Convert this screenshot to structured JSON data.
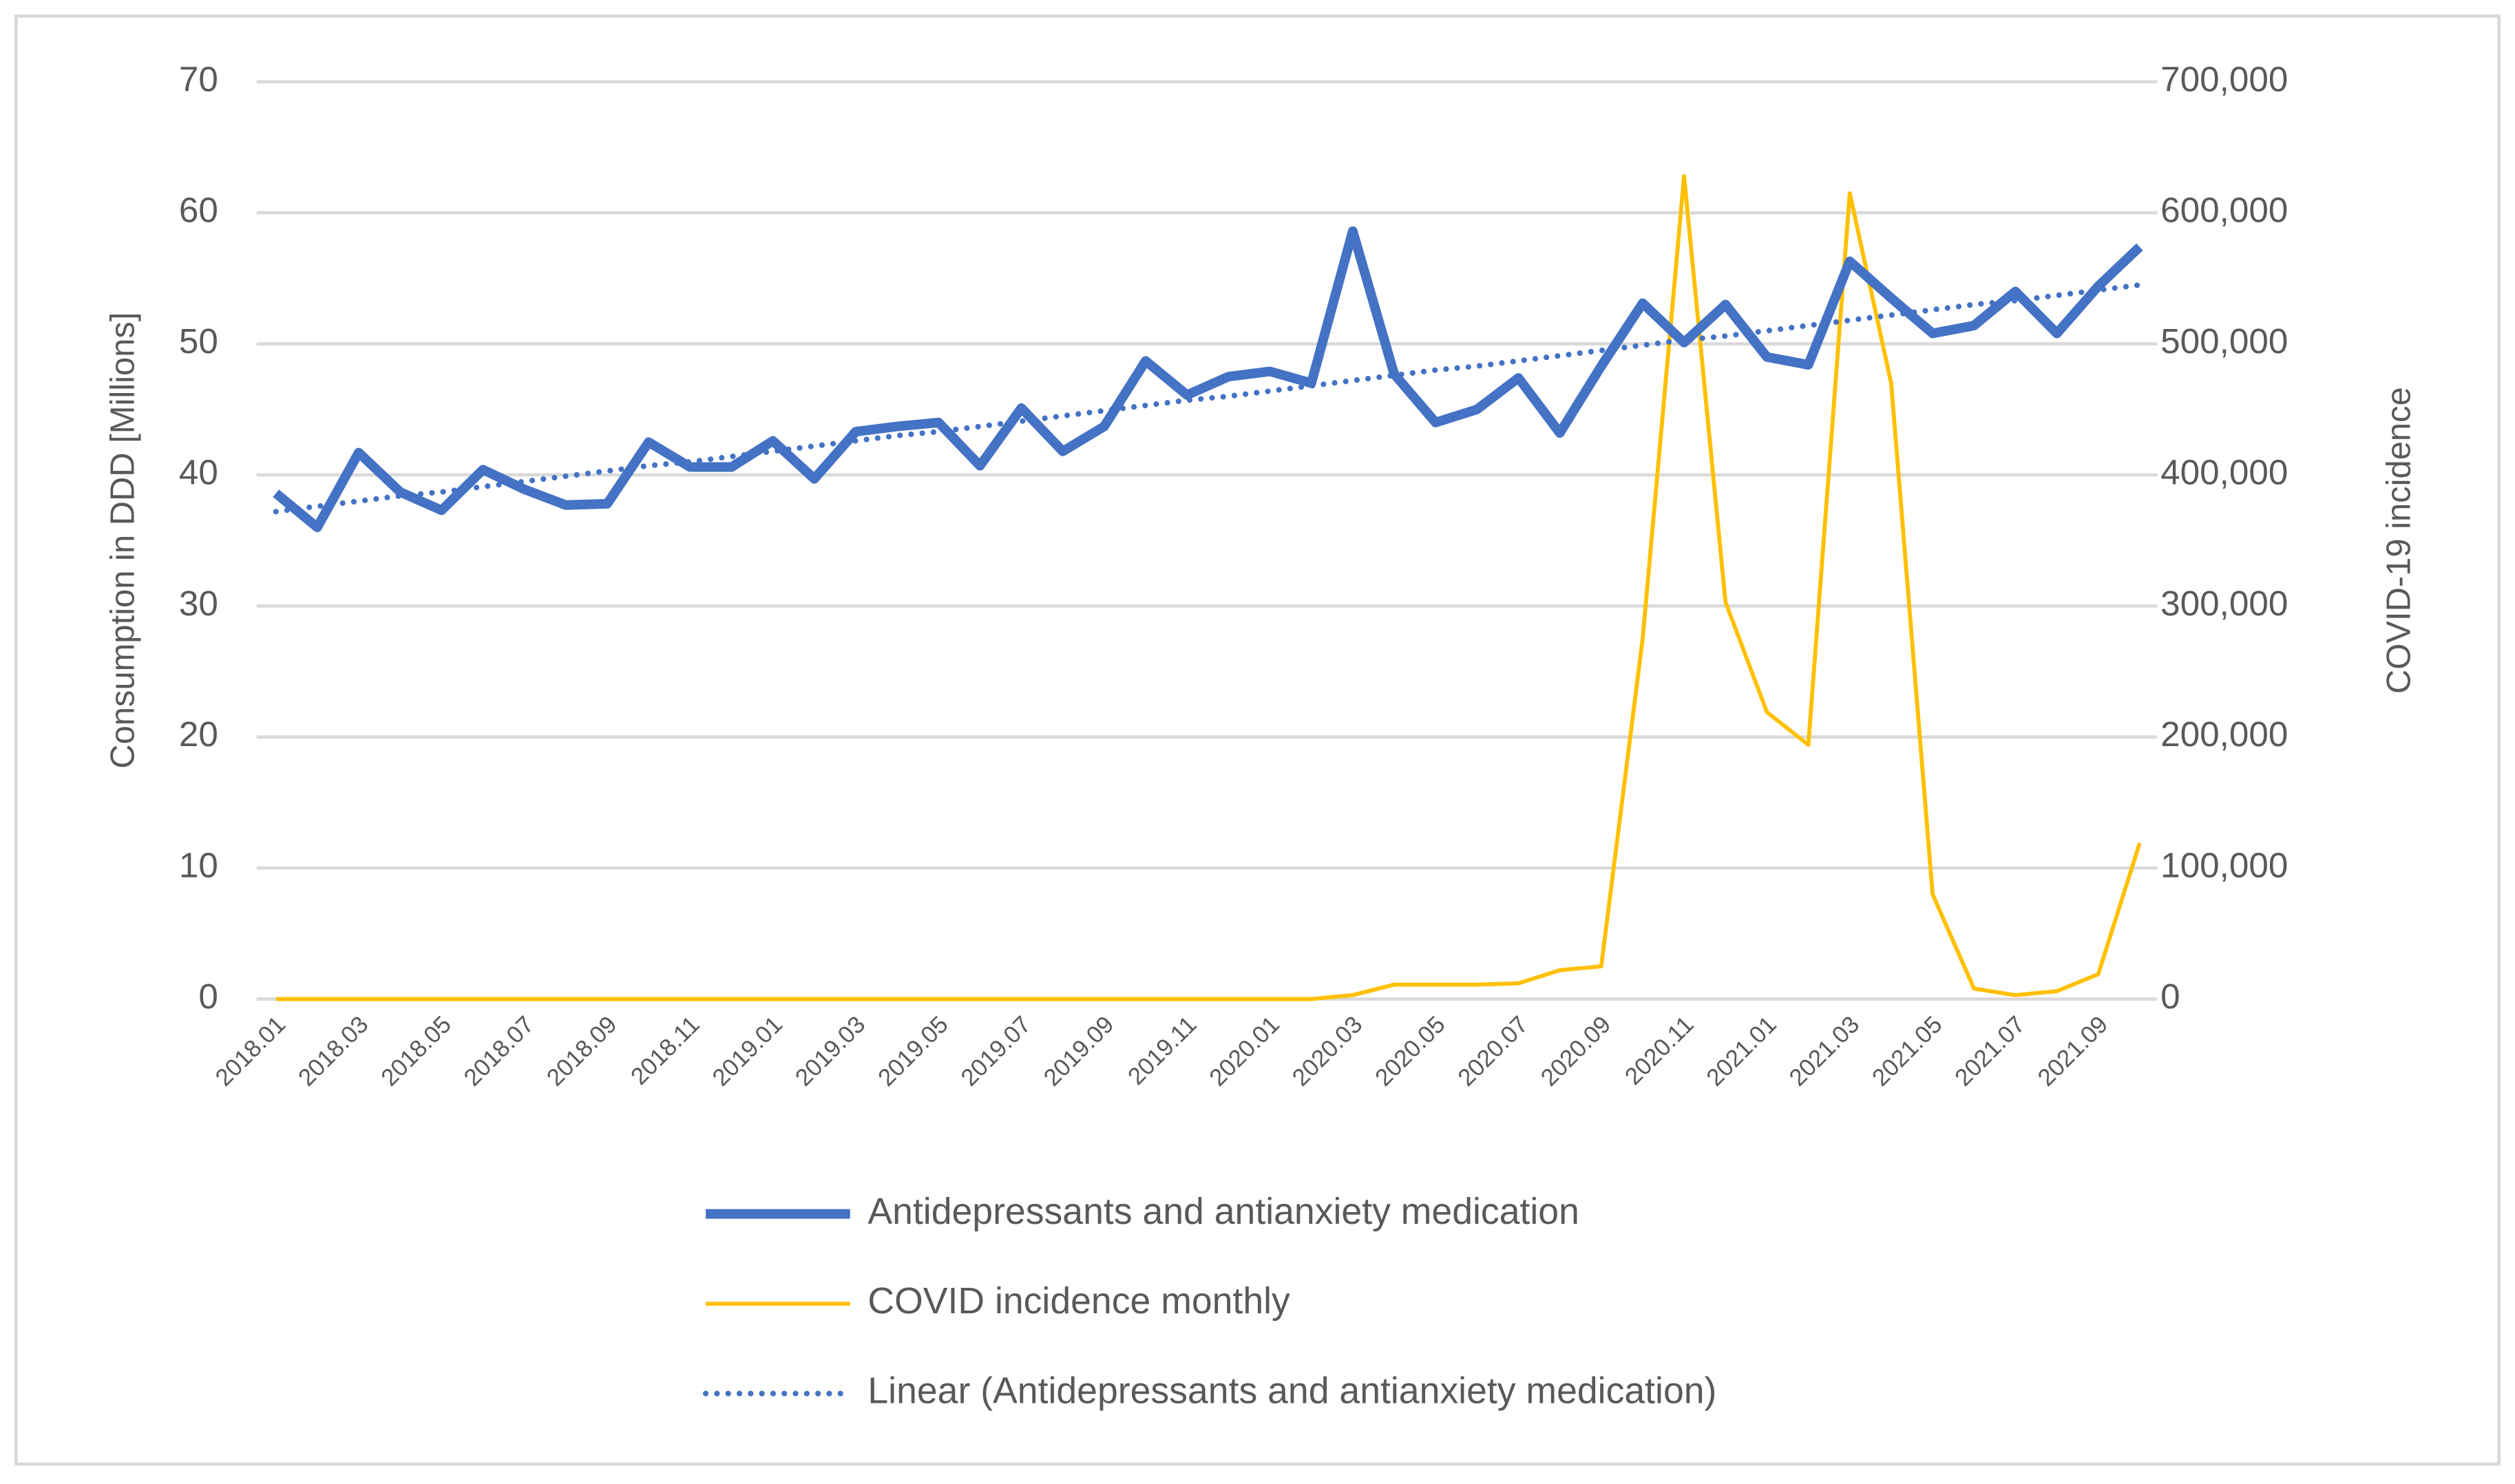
{
  "chart_data": {
    "type": "line",
    "y_label": "Consumption in DDD [Millions]",
    "y2_label": "COVID-19 incidence",
    "categories": [
      "2018.01",
      null,
      "2018.03",
      null,
      "2018.05",
      null,
      "2018.07",
      null,
      "2018.09",
      null,
      "2018.11",
      null,
      "2019.01",
      null,
      "2019.03",
      null,
      "2019.05",
      null,
      "2019.07",
      null,
      "2019.09",
      null,
      "2019.11",
      null,
      "2020.01",
      null,
      "2020.03",
      null,
      "2020.05",
      null,
      "2020.07",
      null,
      "2020.09",
      null,
      "2020.11",
      null,
      "2021.01",
      null,
      "2021.03",
      null,
      "2021.05",
      null,
      "2021.07",
      null,
      "2021.09",
      null
    ],
    "series": [
      {
        "name": "Antidepressants and antianxiety medication",
        "color": "#4472c4",
        "linewidth": 6,
        "linestyle": "solid",
        "values": [
          38.6,
          36.0,
          41.7,
          38.7,
          37.3,
          40.4,
          38.9,
          37.7,
          37.8,
          42.5,
          40.6,
          40.6,
          42.6,
          39.7,
          43.3,
          43.7,
          44.0,
          40.7,
          45.1,
          41.8,
          43.7,
          48.7,
          46.1,
          47.5,
          47.9,
          47.0,
          58.6,
          47.7,
          44.0,
          45.0,
          47.4,
          43.2,
          48.3,
          53.1,
          50.1,
          53.0,
          49.0,
          48.4,
          56.3,
          53.5,
          50.8,
          51.4,
          54.0,
          50.8,
          54.4,
          57.4
        ]
      },
      {
        "name": "COVID incidence monthly",
        "color": "#ffc000",
        "linewidth": 2.5,
        "linestyle": "solid",
        "axis": "y2",
        "values": [
          0,
          0,
          0,
          0,
          0,
          0,
          0,
          0,
          0,
          0,
          0,
          0,
          0,
          0,
          0,
          0,
          0,
          0,
          0,
          0,
          0,
          0,
          0,
          0,
          0,
          0,
          3000,
          11000,
          11000,
          11000,
          12000,
          22000,
          25000,
          275000,
          628000,
          303000,
          219000,
          194000,
          615000,
          470000,
          80000,
          8000,
          3000,
          6000,
          19000,
          119000
        ]
      },
      {
        "name": "Linear (Antidepressants and antianxiety medication)",
        "color": "#4472c4",
        "linewidth": 3.5,
        "linestyle": "dotted",
        "values": [
          37.2,
          37.6,
          38.0,
          38.4,
          38.7,
          39.1,
          39.5,
          39.9,
          40.3,
          40.7,
          41.0,
          41.4,
          41.8,
          42.2,
          42.6,
          43.0,
          43.3,
          43.7,
          44.1,
          44.5,
          44.9,
          45.3,
          45.7,
          46.0,
          46.4,
          46.8,
          47.2,
          47.6,
          48.0,
          48.3,
          48.7,
          49.1,
          49.5,
          49.9,
          50.3,
          50.6,
          51.0,
          51.4,
          51.8,
          52.2,
          52.6,
          53.0,
          53.3,
          53.7,
          54.1,
          54.5
        ]
      }
    ],
    "ylim": [
      0,
      70
    ],
    "yticks": [
      0,
      10,
      20,
      30,
      40,
      50,
      60,
      70
    ],
    "y2lim": [
      0,
      700000
    ],
    "y2ticks": [
      0,
      {
        "value": 100000,
        "label": "100,000"
      },
      {
        "value": 200000,
        "label": "200,000"
      },
      {
        "value": 300000,
        "label": "300,000"
      },
      {
        "value": 400000,
        "label": "400,000"
      },
      {
        "value": 500000,
        "label": "500,000"
      },
      {
        "value": 600000,
        "label": "600,000"
      },
      {
        "value": 700000,
        "label": "700,000"
      }
    ],
    "grid": true,
    "legend": "bottom"
  }
}
